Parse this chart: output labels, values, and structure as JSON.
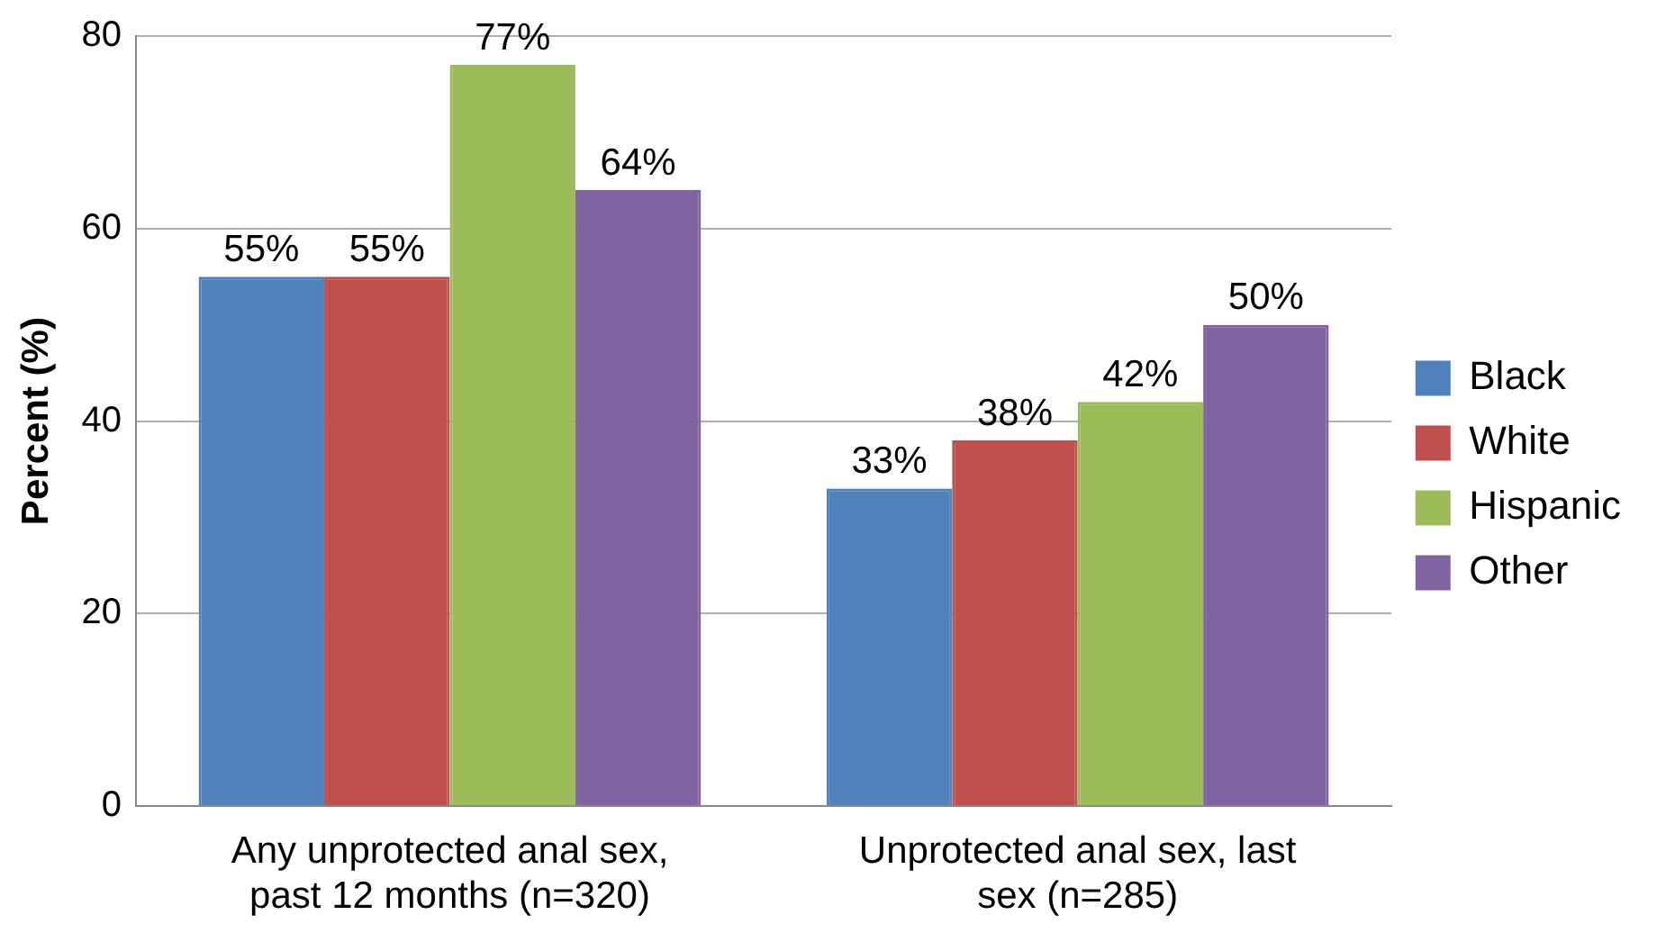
{
  "chart_data": {
    "type": "bar",
    "ylabel": "Percent (%)",
    "categories": [
      "Any unprotected anal sex, past 12 months (n=320)",
      "Unprotected anal sex, last sex (n=285)"
    ],
    "series": [
      {
        "name": "Black",
        "color": "#4f81bd",
        "values": [
          55,
          33
        ],
        "value_labels": [
          "55%",
          "33%"
        ]
      },
      {
        "name": "White",
        "color": "#c0504d",
        "values": [
          55,
          38
        ],
        "value_labels": [
          "55%",
          "38%"
        ]
      },
      {
        "name": "Hispanic",
        "color": "#9bbb59",
        "values": [
          77,
          42
        ],
        "value_labels": [
          "77%",
          "42%"
        ]
      },
      {
        "name": "Other",
        "color": "#8064a2",
        "values": [
          64,
          50
        ],
        "value_labels": [
          "64%",
          "50%"
        ]
      }
    ],
    "ylim": [
      0,
      80
    ],
    "yticks": [
      0,
      20,
      40,
      60,
      80
    ],
    "grid": "y",
    "legend": "right"
  }
}
